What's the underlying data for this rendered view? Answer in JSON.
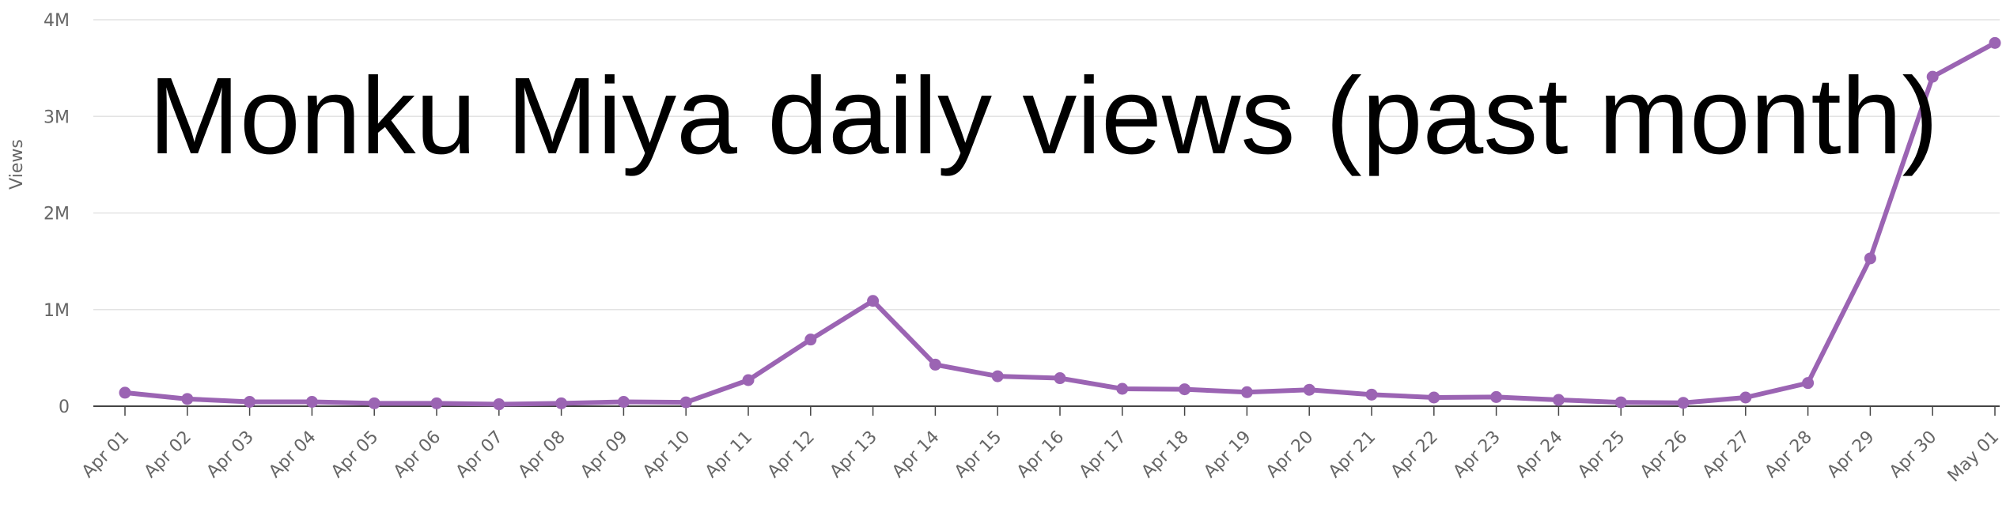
{
  "chart_data": {
    "type": "line",
    "title": "Monku Miya daily views (past month)",
    "ylabel": "Views",
    "xlabel": "",
    "ylim": [
      0,
      4000000
    ],
    "yticks": [
      0,
      1000000,
      2000000,
      3000000,
      4000000
    ],
    "ytick_labels": [
      "0",
      "1M",
      "2M",
      "3M",
      "4M"
    ],
    "grid": true,
    "legend": "none",
    "categories": [
      "Apr 01",
      "Apr 02",
      "Apr 03",
      "Apr 04",
      "Apr 05",
      "Apr 06",
      "Apr 07",
      "Apr 08",
      "Apr 09",
      "Apr 10",
      "Apr 11",
      "Apr 12",
      "Apr 13",
      "Apr 14",
      "Apr 15",
      "Apr 16",
      "Apr 17",
      "Apr 18",
      "Apr 19",
      "Apr 20",
      "Apr 21",
      "Apr 22",
      "Apr 23",
      "Apr 24",
      "Apr 25",
      "Apr 26",
      "Apr 27",
      "Apr 28",
      "Apr 29",
      "Apr 30",
      "May 01"
    ],
    "series": [
      {
        "color": "#9b64b3",
        "values": [
          140000,
          75000,
          45000,
          45000,
          30000,
          30000,
          20000,
          30000,
          45000,
          40000,
          270000,
          690000,
          1090000,
          430000,
          310000,
          290000,
          180000,
          175000,
          145000,
          170000,
          120000,
          90000,
          95000,
          65000,
          40000,
          35000,
          90000,
          240000,
          1530000,
          3410000,
          3760000
        ]
      }
    ]
  }
}
